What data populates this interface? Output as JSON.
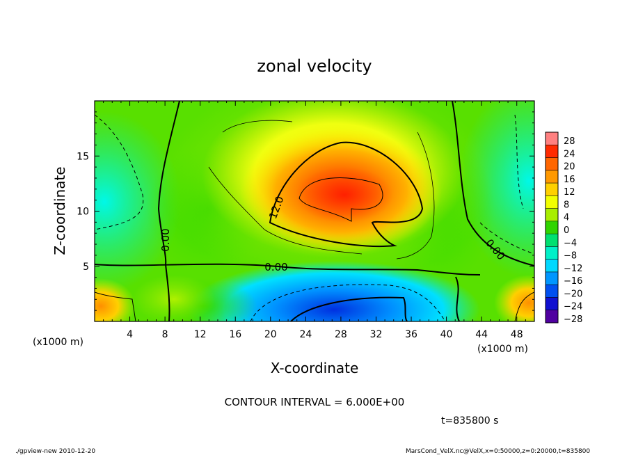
{
  "chart_data": {
    "type": "heatmap",
    "title": "zonal velocity",
    "xlabel": "X-coordinate",
    "ylabel": "Z-coordinate",
    "x_unit_label": "(x1000 m)",
    "y_unit_label": "(x1000 m)",
    "xlim": [
      0,
      50
    ],
    "ylim": [
      0,
      20
    ],
    "x_ticks": [
      "4",
      "8",
      "12",
      "16",
      "20",
      "24",
      "28",
      "32",
      "36",
      "40",
      "44",
      "48"
    ],
    "y_ticks": [
      "5",
      "10",
      "15"
    ],
    "colorbar_labels": [
      "28",
      "24",
      "20",
      "16",
      "12",
      "8",
      "4",
      "0",
      "−4",
      "−8",
      "−12",
      "−16",
      "−20",
      "−24",
      "−28"
    ],
    "colorbar_colors": [
      "#ff8080",
      "#ff2a00",
      "#ff6600",
      "#ff9900",
      "#ffd000",
      "#f2ff00",
      "#a8ee00",
      "#30d400",
      "#00e070",
      "#00f0c8",
      "#00d8ff",
      "#0096ff",
      "#0050f0",
      "#1010d0",
      "#5000a0"
    ],
    "contour_labels": [
      "12.0",
      "0.00",
      "0.00",
      "0.00"
    ],
    "contour_interval": "CONTOUR INTERVAL = 6.000E+00",
    "time": "t=835800 s",
    "features": [
      {
        "x": 28,
        "z": 11.5,
        "value": 22
      },
      {
        "x": 28,
        "z": 1.5,
        "value": -16
      },
      {
        "x": 1,
        "z": 1.5,
        "value": 12
      },
      {
        "x": 49,
        "z": 1.5,
        "value": 10
      },
      {
        "x": 2,
        "z": 10,
        "value": -6
      },
      {
        "x": 48,
        "z": 12,
        "value": -4
      }
    ]
  },
  "footer": {
    "left": "./gpview-new  2010-12-20",
    "right": "MarsCond_VelX.nc@VelX,x=0:50000,z=0:20000,t=835800"
  }
}
